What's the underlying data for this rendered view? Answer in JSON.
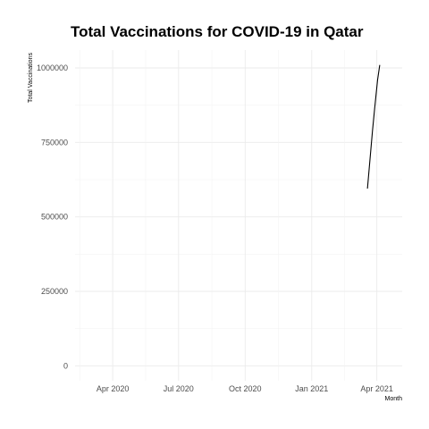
{
  "chart_data": {
    "type": "line",
    "title": "Total Vaccinations for COVID-19 in Qatar",
    "xlabel": "Month",
    "ylabel": "Total Vaccinations",
    "x_ticks": [
      "Apr 2020",
      "Jul 2020",
      "Oct 2020",
      "Jan 2021",
      "Apr 2021"
    ],
    "y_ticks": [
      0,
      250000,
      500000,
      750000,
      1000000
    ],
    "xlim": [
      "2020-02-09",
      "2021-05-06"
    ],
    "ylim": [
      -50000,
      1060000
    ],
    "grid": true,
    "series": [
      {
        "color": "#000000",
        "points": [
          {
            "x": "2021-03-19",
            "y": 595000
          },
          {
            "x": "2021-03-26",
            "y": 790000
          },
          {
            "x": "2021-03-29",
            "y": 865000
          },
          {
            "x": "2021-04-02",
            "y": 960000
          },
          {
            "x": "2021-04-05",
            "y": 1010000
          }
        ]
      }
    ]
  }
}
